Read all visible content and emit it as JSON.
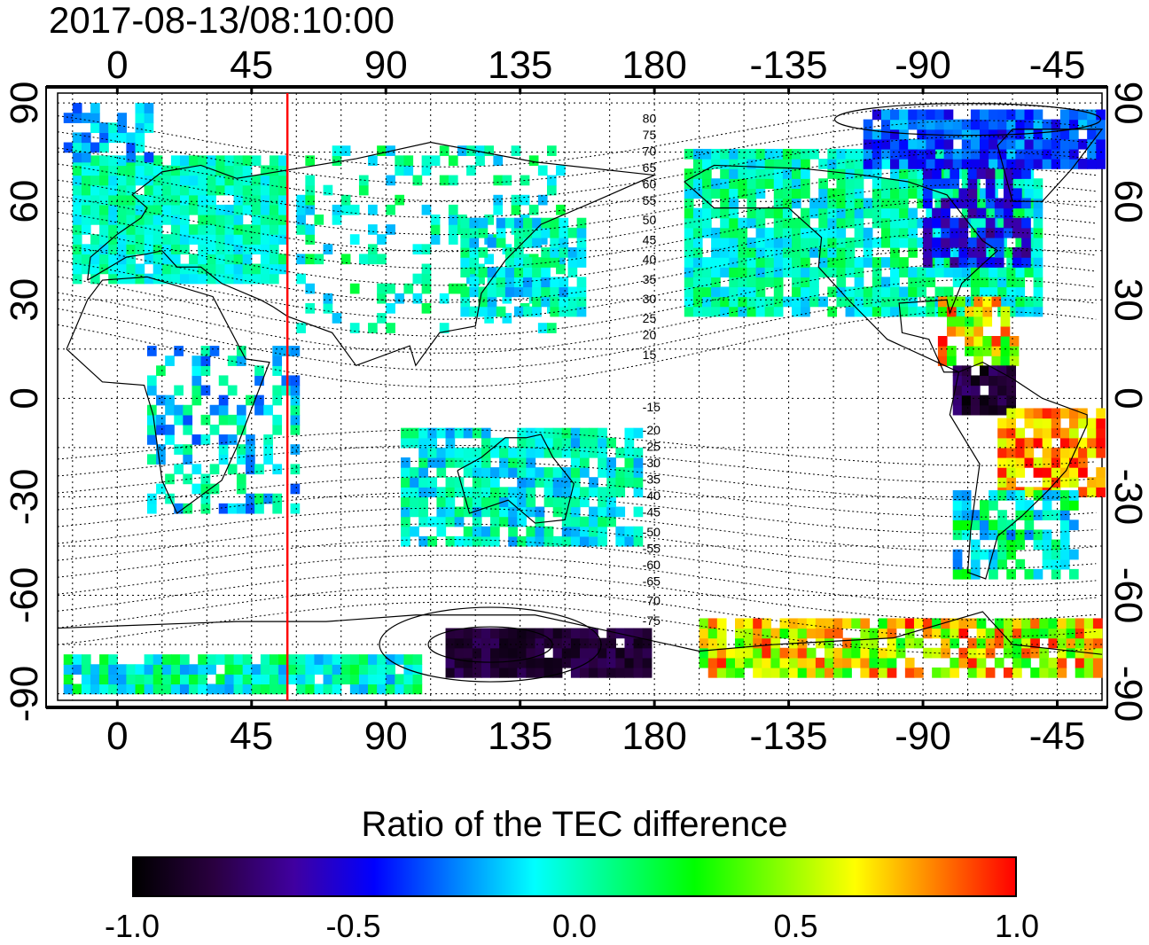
{
  "timestamp": "2017-08-13/08:10:00",
  "map": {
    "lon_labels": [
      "0",
      "45",
      "90",
      "135",
      "180",
      "-135",
      "-90",
      "-45"
    ],
    "lon_values": [
      0,
      45,
      90,
      135,
      180,
      225,
      270,
      315
    ],
    "lat_labels_left": [
      "90",
      "60",
      "30",
      "0",
      "-30",
      "-60",
      "-90"
    ],
    "lat_labels_right": [
      "90",
      "60",
      "30",
      "0",
      "-30",
      "-60",
      "-90"
    ],
    "lat_values": [
      90,
      60,
      30,
      0,
      -30,
      -60,
      -90
    ],
    "lon_range": [
      -20,
      330
    ],
    "lat_range": [
      -92,
      93
    ],
    "sun_meridian_lon": 57,
    "grid": true,
    "grid_step_deg": 15,
    "mag_latitude_labels_north": [
      "80",
      "75",
      "70",
      "65",
      "60",
      "55",
      "50",
      "45",
      "40",
      "35",
      "30",
      "25",
      "20",
      "15"
    ],
    "mag_latitude_labels_south": [
      "-15",
      "-20",
      "-25",
      "-30",
      "-35",
      "-40",
      "-45",
      "-50",
      "-55",
      "-60",
      "-65",
      "-70",
      "-75"
    ],
    "colors": {
      "sun_meridian": "#ff0000",
      "grid": "#000000"
    }
  },
  "colorbar": {
    "title": "Ratio of the TEC difference",
    "labels": [
      "-1.0",
      "-0.5",
      "0.0",
      "0.5",
      "1.0"
    ],
    "min": -1.0,
    "max": 1.0,
    "colormap": [
      "#000000",
      "#2a0040",
      "#4000a0",
      "#0000ff",
      "#0080ff",
      "#00ffff",
      "#00ff80",
      "#00ff00",
      "#80ff00",
      "#ffff00",
      "#ff8000",
      "#ff0000"
    ]
  }
}
